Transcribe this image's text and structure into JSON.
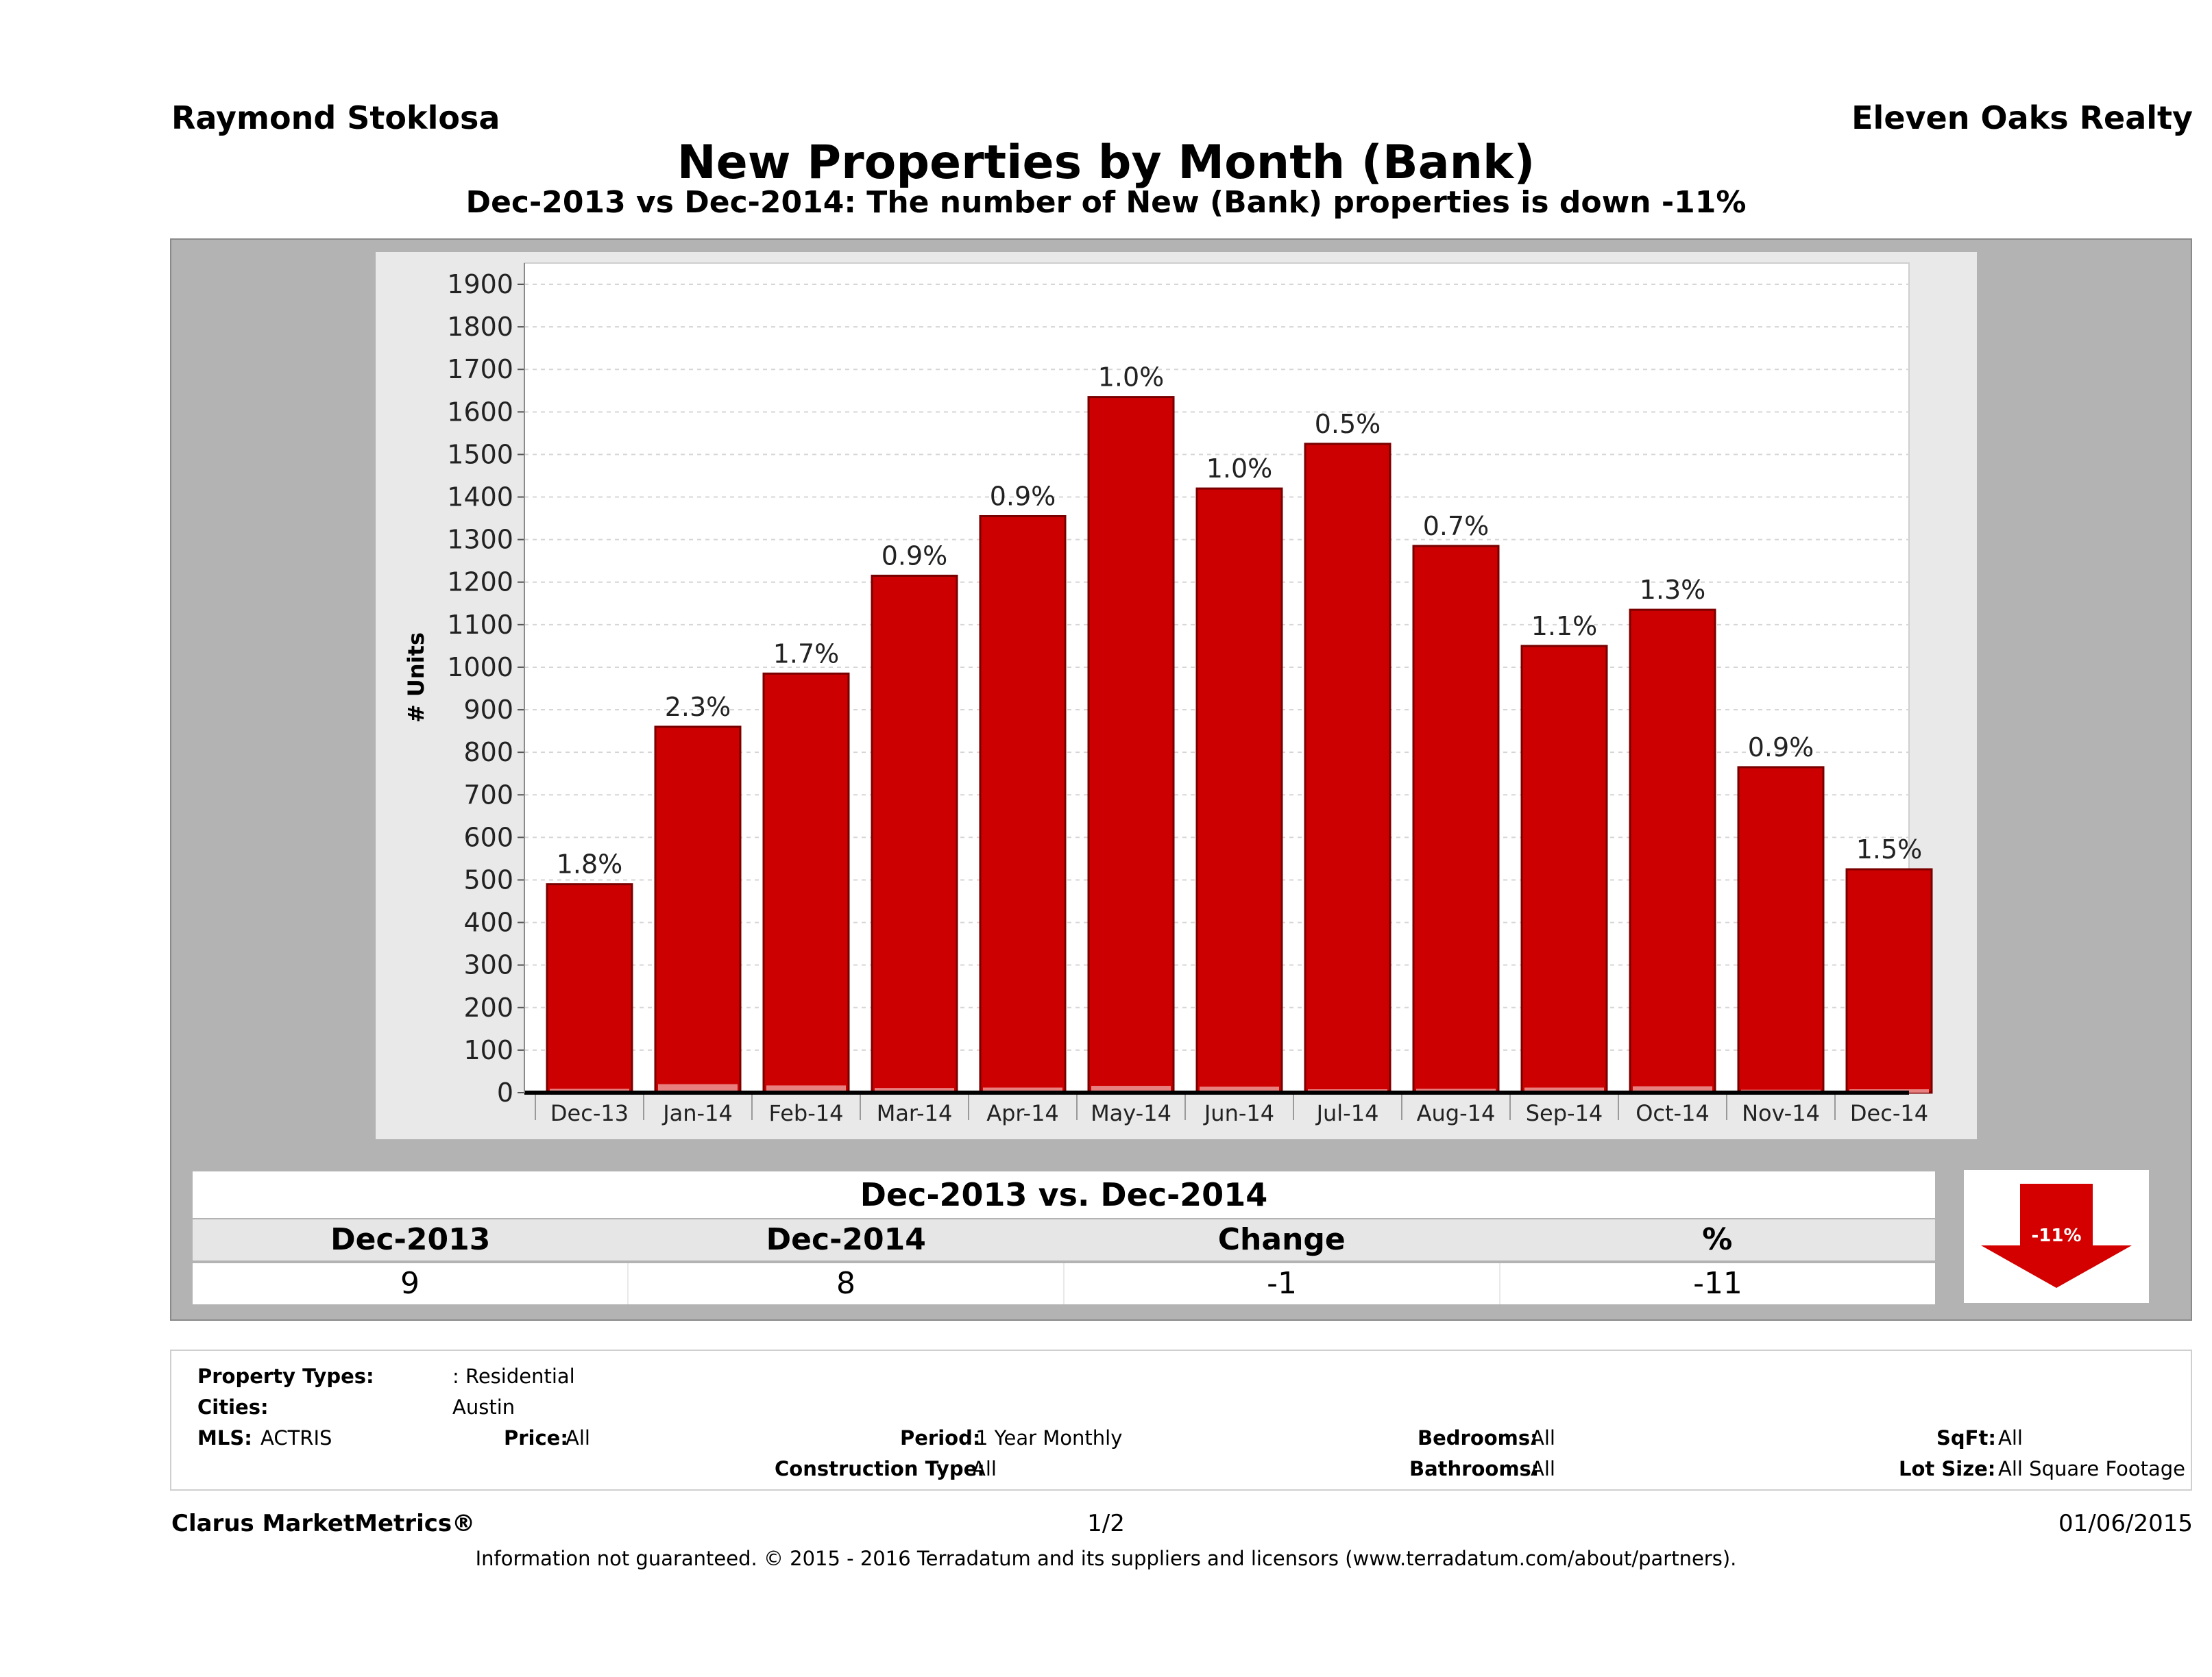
{
  "header": {
    "agent_name": "Raymond Stoklosa",
    "brokerage": "Eleven Oaks Realty",
    "title": "New Properties by Month (Bank)",
    "subtitle": "Dec-2013 vs Dec-2014: The number of New (Bank)  properties is down -11%"
  },
  "colors": {
    "bar": "#cc0000",
    "bar_edge": "#7a0000",
    "panel": "#b3b3b3",
    "plot": "#ffffff",
    "arrow": "#d40000"
  },
  "chart_data": {
    "type": "bar",
    "ylabel": "# Units",
    "xlabel": "",
    "ylim": [
      0,
      1900
    ],
    "y_ticks": [
      0,
      100,
      200,
      300,
      400,
      500,
      600,
      700,
      800,
      900,
      1000,
      1100,
      1200,
      1300,
      1400,
      1500,
      1600,
      1700,
      1800,
      1900
    ],
    "grid": true,
    "categories": [
      "Dec-13",
      "Jan-14",
      "Feb-14",
      "Mar-14",
      "Apr-14",
      "May-14",
      "Jun-14",
      "Jul-14",
      "Aug-14",
      "Sep-14",
      "Oct-14",
      "Nov-14",
      "Dec-14"
    ],
    "values": [
      490,
      860,
      985,
      1215,
      1355,
      1635,
      1420,
      1525,
      1285,
      1050,
      1135,
      765,
      525
    ],
    "bank_values": [
      9,
      20,
      17,
      11,
      12,
      16,
      14,
      8,
      9,
      12,
      15,
      7,
      8
    ],
    "data_labels": [
      "1.8%",
      "2.3%",
      "1.7%",
      "0.9%",
      "0.9%",
      "1.0%",
      "1.0%",
      "0.5%",
      "0.7%",
      "1.1%",
      "1.3%",
      "0.9%",
      "1.5%"
    ]
  },
  "summary": {
    "heading": "Dec-2013 vs. Dec-2014",
    "labels": [
      "Dec-2013",
      "Dec-2014",
      "Change",
      "%"
    ],
    "values": [
      "9",
      "8",
      "-1",
      "-11"
    ],
    "badge": "-11%"
  },
  "filters": {
    "property_types_label": "Property Types:",
    "property_types_value": ": Residential",
    "cities_label": "Cities:",
    "cities_value": "Austin",
    "mls_label": "MLS:",
    "mls_value": "ACTRIS",
    "price_label": "Price:",
    "price_value": "All",
    "period_label": "Period:",
    "period_value": "1 Year Monthly",
    "construction_label": "Construction Type:",
    "construction_value": "All",
    "bedrooms_label": "Bedrooms:",
    "bedrooms_value": "All",
    "bathrooms_label": "Bathrooms:",
    "bathrooms_value": "All",
    "sqft_label": "SqFt:",
    "sqft_value": "All",
    "lotsize_label": "Lot Size:",
    "lotsize_value": "All Square Footage"
  },
  "footer": {
    "product": "Clarus MarketMetrics®",
    "page": "1/2",
    "date": "01/06/2015",
    "disclaimer": "Information not guaranteed. © 2015 - 2016 Terradatum and its suppliers and licensors (www.terradatum.com/about/partners)."
  }
}
